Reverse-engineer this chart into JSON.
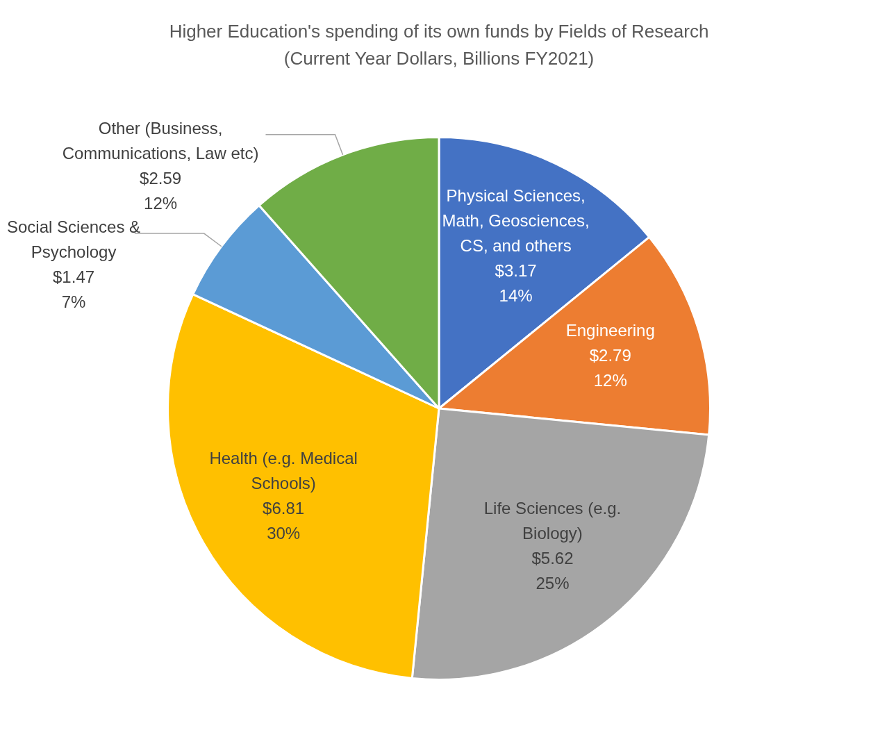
{
  "chart_data": {
    "type": "pie",
    "title": "Higher Education's spending of its own funds by Fields of Research",
    "subtitle": "(Current Year Dollars, Billions FY2021)",
    "categories": [
      "Physical Sciences, Math, Geosciences, CS, and others",
      "Engineering",
      "Life Sciences (e.g. Biology)",
      "Health (e.g. Medical Schools)",
      "Social Sciences & Psychology",
      "Other (Business, Communications, Law etc)"
    ],
    "values": [
      3.17,
      2.79,
      5.62,
      6.81,
      1.47,
      2.59
    ],
    "colors": [
      "#4472c4",
      "#ed7d31",
      "#a5a5a5",
      "#ffc000",
      "#5b9bd5",
      "#70ad47"
    ],
    "value_labels": [
      "$3.17\n14%",
      "$2.79\n12%",
      "$5.62\n25%",
      "$6.81\n30%",
      "$1.47\n7%",
      "$2.59\n12%"
    ],
    "legend": false
  }
}
